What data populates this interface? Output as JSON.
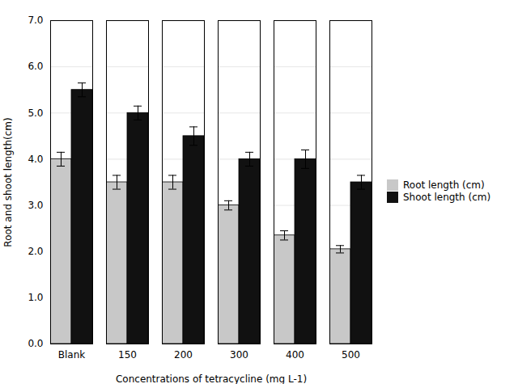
{
  "chart_data": {
    "type": "bar",
    "xlabel": "Concentrations of tetracycline (mg L-1)",
    "ylabel": "Root and shoot length(cm)",
    "categories": [
      "Blank",
      "150",
      "200",
      "300",
      "400",
      "500"
    ],
    "series": [
      {
        "name": "Root length (cm)",
        "color": "#c8c8c8",
        "values": [
          4.0,
          3.5,
          3.5,
          3.0,
          2.35,
          2.05
        ],
        "errors": [
          0.15,
          0.15,
          0.15,
          0.1,
          0.1,
          0.08
        ]
      },
      {
        "name": "Shoot length (cm)",
        "color": "#111111",
        "values": [
          5.5,
          5.0,
          4.5,
          4.0,
          4.0,
          3.5
        ],
        "errors": [
          0.15,
          0.15,
          0.2,
          0.15,
          0.2,
          0.15
        ]
      }
    ],
    "ylim": [
      0,
      7
    ],
    "yticks": [
      0,
      1,
      2,
      3,
      4,
      5,
      6,
      7
    ],
    "grid": true,
    "legend": "right"
  }
}
